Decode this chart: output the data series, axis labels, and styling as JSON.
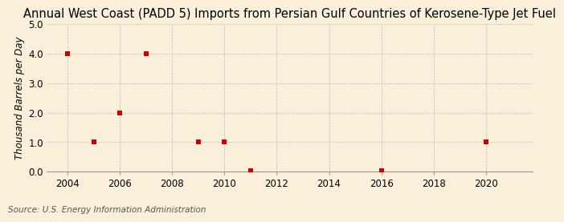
{
  "title": "Annual West Coast (PADD 5) Imports from Persian Gulf Countries of Kerosene-Type Jet Fuel",
  "ylabel": "Thousand Barrels per Day",
  "source": "Source: U.S. Energy Information Administration",
  "background_color": "#faefd9",
  "plot_background_color": "#faefd9",
  "xlim": [
    2003.2,
    2021.8
  ],
  "ylim": [
    0.0,
    5.0
  ],
  "yticks": [
    0.0,
    1.0,
    2.0,
    3.0,
    4.0,
    5.0
  ],
  "xticks": [
    2004,
    2006,
    2008,
    2010,
    2012,
    2014,
    2016,
    2018,
    2020
  ],
  "data_x": [
    2004,
    2005,
    2006,
    2007,
    2009,
    2010,
    2011,
    2016,
    2020
  ],
  "data_y": [
    4.0,
    1.0,
    2.0,
    4.0,
    1.0,
    1.0,
    0.03,
    0.03,
    1.0
  ],
  "marker_color": "#cc0000",
  "marker_size": 4,
  "grid_color": "#bbbbbb",
  "title_fontsize": 10.5,
  "label_fontsize": 8.5,
  "tick_fontsize": 8.5,
  "source_fontsize": 7.5
}
